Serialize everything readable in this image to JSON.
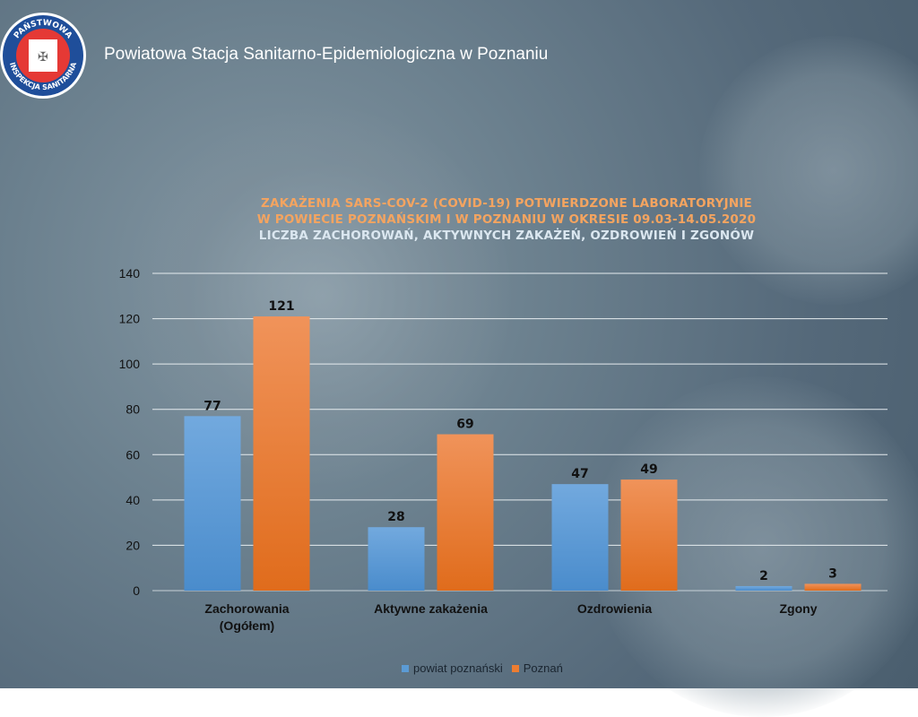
{
  "header": {
    "title": "Powiatowa  Stacja Sanitarno-Epidemiologiczna w Poznaniu",
    "logo_text": "PAŃSTWOWA INSPEKCJA SANITARNA"
  },
  "colors": {
    "series1": "#5b9bd5",
    "series2": "#ed7d31",
    "title1": "#f4a460",
    "title2": "#dbe7f0"
  },
  "chart_data": {
    "type": "bar",
    "title_lines": [
      "ZAKAŻENIA SARS-COV-2 (COVID-19) POTWIERDZONE LABORATORYJNIE",
      "W POWIECIE POZNAŃSKIM I W POZNANIU  W OKRESIE 09.03-14.05.2020"
    ],
    "subtitle": "LICZBA ZACHOROWAŃ, AKTYWNYCH ZAKAŻEŃ, OZDROWIEŃ I ZGONÓW",
    "categories": [
      [
        "Zachorowania",
        "(Ogółem)"
      ],
      [
        "Aktywne zakażenia"
      ],
      [
        "Ozdrowienia"
      ],
      [
        "Zgony"
      ]
    ],
    "series": [
      {
        "name": "powiat poznański",
        "values": [
          77,
          28,
          47,
          2
        ]
      },
      {
        "name": "Poznań",
        "values": [
          121,
          69,
          49,
          3
        ]
      }
    ],
    "ylim": [
      0,
      140
    ],
    "yticks": [
      0,
      20,
      40,
      60,
      80,
      100,
      120,
      140
    ],
    "grid": true,
    "legend": "bottom"
  }
}
